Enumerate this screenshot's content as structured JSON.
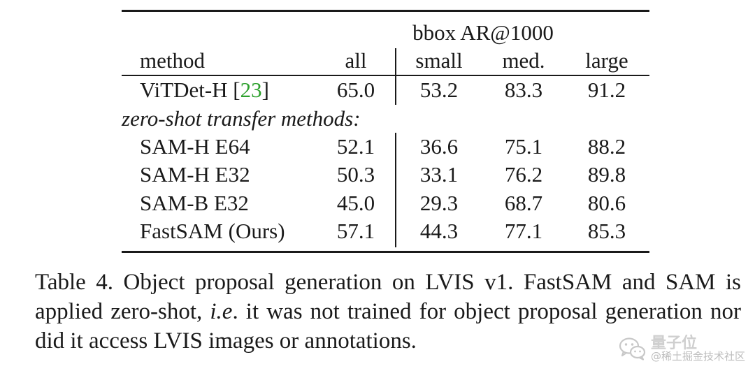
{
  "table": {
    "group_header": "bbox AR@1000",
    "columns": [
      "method",
      "all",
      "small",
      "med.",
      "large"
    ],
    "baseline": {
      "method_name": "ViTDet-H",
      "citation_open": "[",
      "citation_ref": "23",
      "citation_close": "]",
      "all": "65.0",
      "small": "53.2",
      "med": "83.3",
      "large": "91.2"
    },
    "subheader": "zero-shot transfer methods:",
    "rows": [
      {
        "method": "SAM-H E64",
        "all": "52.1",
        "small": "36.6",
        "med": "75.1",
        "large": "88.2"
      },
      {
        "method": "SAM-H E32",
        "all": "50.3",
        "small": "33.1",
        "med": "76.2",
        "large": "89.8"
      },
      {
        "method": "SAM-B E32",
        "all": "45.0",
        "small": "29.3",
        "med": "68.7",
        "large": "80.6"
      },
      {
        "method": "FastSAM (Ours)",
        "all": "57.1",
        "small": "44.3",
        "med": "77.1",
        "large": "85.3"
      }
    ]
  },
  "caption": {
    "part1": "Table 4.  Object proposal generation on LVIS v1.  FastSAM and SAM is applied zero-shot, ",
    "ie": "i.e",
    "part2": ". it was not trained for object proposal generation nor did it access LVIS images or annotations."
  },
  "watermark": {
    "title": "量子位",
    "subtitle": "@稀土掘金技术社区",
    "icon": "wechat-icon"
  },
  "colors": {
    "citation": "#2ca02c",
    "text": "#1a1a1a",
    "watermark": "#c2c2c2"
  }
}
